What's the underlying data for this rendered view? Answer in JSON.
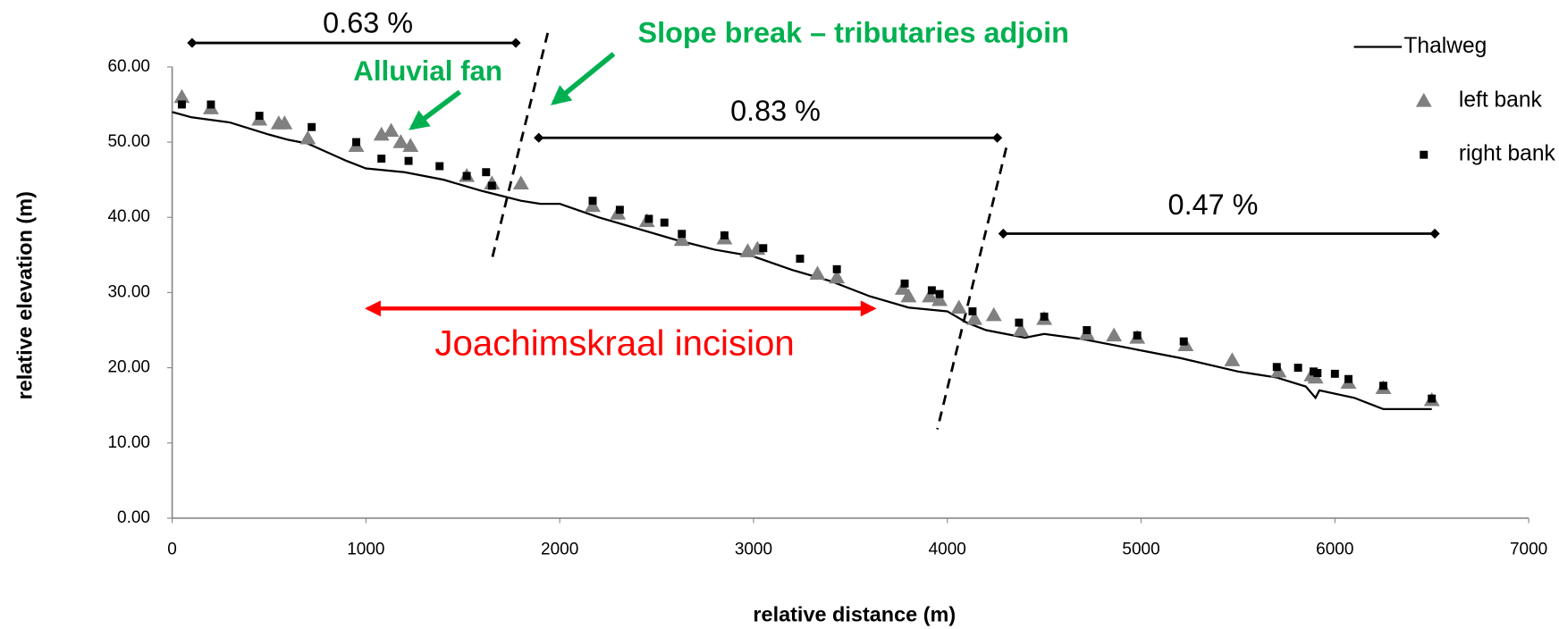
{
  "chart_data": {
    "type": "line",
    "x_label": "relative distance (m)",
    "y_label": "relative elevation (m)",
    "xlim": [
      0,
      7000
    ],
    "xticks": [
      0,
      1000,
      2000,
      3000,
      4000,
      5000,
      6000,
      7000
    ],
    "ylim": [
      0,
      65
    ],
    "yticks": [
      {
        "value": 0,
        "label": "0.00"
      },
      {
        "value": 10,
        "label": "10.00"
      },
      {
        "value": 20,
        "label": "20.00"
      },
      {
        "value": 30,
        "label": "30.00"
      },
      {
        "value": 40,
        "label": "40.00"
      },
      {
        "value": 50,
        "label": "50.00"
      },
      {
        "value": 60,
        "label": "60.00"
      }
    ],
    "grid": false,
    "legend": "upper right",
    "series": [
      {
        "name": "Thalweg",
        "kind": "line",
        "color": "#000000",
        "x": [
          0,
          100,
          300,
          500,
          600,
          700,
          900,
          1000,
          1200,
          1400,
          1600,
          1800,
          1900,
          2000,
          2200,
          2400,
          2600,
          2800,
          3000,
          3200,
          3400,
          3600,
          3800,
          4000,
          4100,
          4200,
          4400,
          4500,
          4700,
          5000,
          5200,
          5500,
          5700,
          5850,
          5900,
          5920,
          6100,
          6250,
          6500
        ],
        "values": [
          54,
          53.3,
          52.6,
          51,
          50.3,
          49.8,
          47.5,
          46.5,
          46,
          45,
          43.5,
          42.2,
          41.8,
          41.8,
          40,
          38.5,
          37,
          35.7,
          34.8,
          33,
          31.5,
          29.5,
          28,
          27.5,
          26,
          25,
          24,
          24.5,
          23.8,
          22.3,
          21.3,
          19.5,
          18.7,
          17.5,
          16,
          17,
          16,
          14.5,
          14.5
        ]
      },
      {
        "name": "left bank",
        "kind": "triangle",
        "color": "#808080",
        "x": [
          50,
          200,
          450,
          550,
          580,
          700,
          950,
          1080,
          1130,
          1180,
          1230,
          1520,
          1650,
          1800,
          2170,
          2300,
          2450,
          2630,
          2850,
          2970,
          3020,
          3330,
          3430,
          3770,
          3800,
          3910,
          3960,
          4060,
          4140,
          4240,
          4380,
          4500,
          4720,
          4860,
          4980,
          5230,
          5470,
          5710,
          5880,
          5900,
          6070,
          6250,
          6500
        ],
        "values": [
          56,
          54.5,
          53,
          52.5,
          52.5,
          50.5,
          49.5,
          51,
          51.5,
          50,
          49.5,
          45.5,
          44.5,
          44.5,
          41.5,
          40.5,
          39.5,
          37,
          37.2,
          35.5,
          35.8,
          32.5,
          32,
          30.5,
          29.5,
          29.5,
          29,
          28,
          26.5,
          27,
          25,
          26.5,
          24.5,
          24.3,
          24,
          23,
          21,
          19.5,
          19,
          18.7,
          18,
          17.3,
          15.7
        ]
      },
      {
        "name": "right bank",
        "kind": "square",
        "color": "#000000",
        "x": [
          50,
          200,
          450,
          720,
          950,
          1080,
          1220,
          1380,
          1520,
          1620,
          1650,
          2170,
          2310,
          2460,
          2540,
          2630,
          2850,
          3050,
          3240,
          3430,
          3780,
          3920,
          3960,
          4130,
          4370,
          4500,
          4720,
          4980,
          5220,
          5700,
          5810,
          5890,
          5910,
          6000,
          6070,
          6250,
          6500
        ],
        "values": [
          55,
          55,
          53.5,
          52,
          50,
          47.8,
          47.5,
          46.8,
          45.5,
          46,
          44.2,
          42.2,
          41,
          39.8,
          39.3,
          37.8,
          37.6,
          35.9,
          34.5,
          33.1,
          31.2,
          30.3,
          29.8,
          27.5,
          26,
          26.8,
          25,
          24.3,
          23.5,
          20.1,
          20,
          19.5,
          19.3,
          19.2,
          18.5,
          17.6,
          15.9
        ]
      }
    ],
    "annotations": [
      "0.63 %",
      "0.83 %",
      "0.47 %",
      "Alluvial fan",
      "Slope break – tributaries adjoin",
      "Joachimskraal incision"
    ]
  }
}
